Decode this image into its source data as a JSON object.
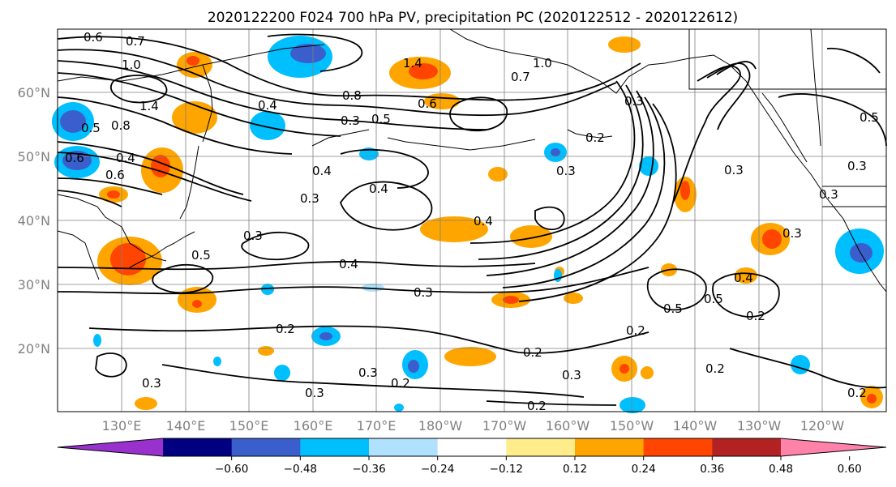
{
  "title": "2020122200 F024 700 hPa PV, precipitation PC (2020122512 - 2020122612)",
  "lat_labels": [
    "60°N",
    "50°N",
    "40°N",
    "30°N",
    "20°N"
  ],
  "lon_labels": [
    "130°E",
    "140°E",
    "150°E",
    "160°E",
    "170°E",
    "180°W",
    "170°W",
    "160°W",
    "150°W",
    "140°W",
    "130°W",
    "120°W"
  ],
  "colorbar": {
    "colors": [
      "#9932cc",
      "#000080",
      "#3a5fcd",
      "#00bfff",
      "#b0e2ff",
      "#ffffff",
      "#ffec8b",
      "#ffa500",
      "#ff4500",
      "#b22222",
      "#ff82ab"
    ],
    "ticks": [
      "−0.60",
      "−0.48",
      "−0.36",
      "−0.24",
      "−0.12",
      "0.12",
      "0.24",
      "0.36",
      "0.48",
      "0.60"
    ]
  },
  "contour_labels": [
    "0.6",
    "0.7",
    "1.0",
    "1.4",
    "0.8",
    "0.5",
    "0.6",
    "0.4",
    "0.6",
    "1.4",
    "1.0",
    "0.7",
    "0.8",
    "0.4",
    "0.3",
    "0.5",
    "0.6",
    "0.4",
    "0.4",
    "0.3",
    "0.3",
    "0.5",
    "0.4",
    "0.3",
    "0.2",
    "0.3",
    "0.2",
    "0.3",
    "0.4",
    "0.3",
    "0.2",
    "0.3",
    "0.2",
    "0.3",
    "0.5",
    "0.5",
    "0.4",
    "0.2",
    "0.2",
    "0.3",
    "0.3",
    "0.2",
    "0.2",
    "0.3",
    "0.3",
    "0.3",
    "0.5",
    "0.2"
  ]
}
